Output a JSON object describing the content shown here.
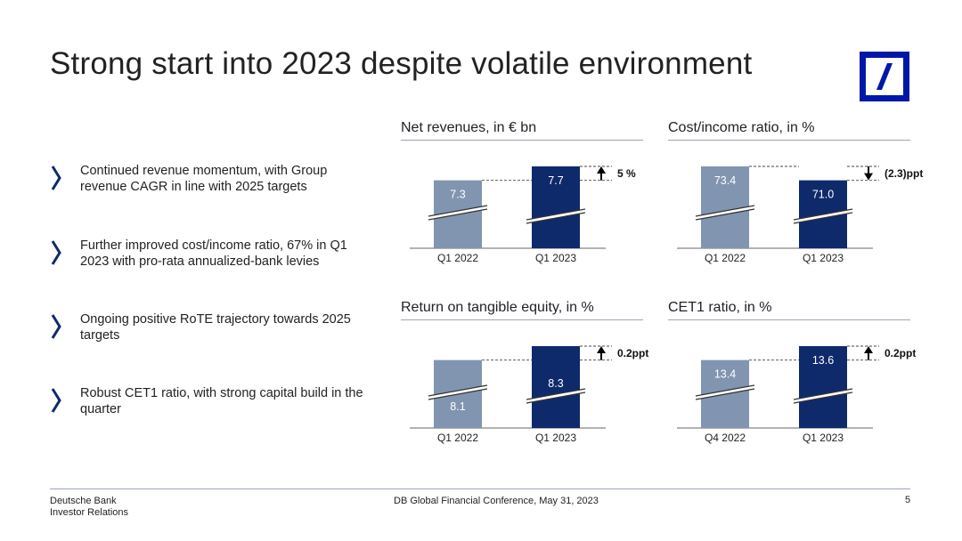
{
  "title": "Strong start into 2023 despite volatile environment",
  "colors": {
    "prior": "#8195b0",
    "current": "#0f2a6b",
    "accent": "#0018a8",
    "rule": "#9aa4b8"
  },
  "bullets": [
    {
      "text": "Continued revenue momentum, with Group revenue CAGR in line with 2025 targets",
      "icon": "chevron-right-icon"
    },
    {
      "text": "Further improved cost/income ratio, 67% in Q1 2023 with pro-rata annualized-bank levies",
      "icon": "chevron-right-icon"
    },
    {
      "text": "Ongoing positive RoTE trajectory towards 2025 targets",
      "icon": "chevron-right-icon"
    },
    {
      "text": "Robust CET1 ratio, with strong capital build in the quarter",
      "icon": "chevron-right-icon"
    }
  ],
  "chart_data": [
    {
      "type": "bar",
      "title": "Net revenues, in € bn",
      "categories": [
        "Q1 2022",
        "Q1 2023"
      ],
      "values": [
        7.3,
        7.7
      ],
      "value_labels": [
        "7.3",
        "7.7"
      ],
      "change": "5 %",
      "direction": "up",
      "broken_axis": true
    },
    {
      "type": "bar",
      "title": "Cost/income ratio, in %",
      "categories": [
        "Q1 2022",
        "Q1 2023"
      ],
      "values": [
        73.4,
        71.0
      ],
      "value_labels": [
        "73.4",
        "71.0"
      ],
      "change": "(2.3)ppt",
      "direction": "down",
      "broken_axis": true
    },
    {
      "type": "bar",
      "title": "Return on tangible equity, in %",
      "categories": [
        "Q1 2022",
        "Q1 2023"
      ],
      "values": [
        8.1,
        8.3
      ],
      "value_labels": [
        "8.1",
        "8.3"
      ],
      "change": "0.2ppt",
      "direction": "up",
      "broken_axis": true
    },
    {
      "type": "bar",
      "title": "CET1 ratio, in %",
      "categories": [
        "Q4 2022",
        "Q1 2023"
      ],
      "values": [
        13.4,
        13.6
      ],
      "value_labels": [
        "13.4",
        "13.6"
      ],
      "change": "0.2ppt",
      "direction": "up",
      "broken_axis": true
    }
  ],
  "footer": {
    "company": "Deutsche Bank",
    "department": "Investor Relations",
    "event": "DB Global Financial Conference, May 31, 2023",
    "page": "5"
  }
}
